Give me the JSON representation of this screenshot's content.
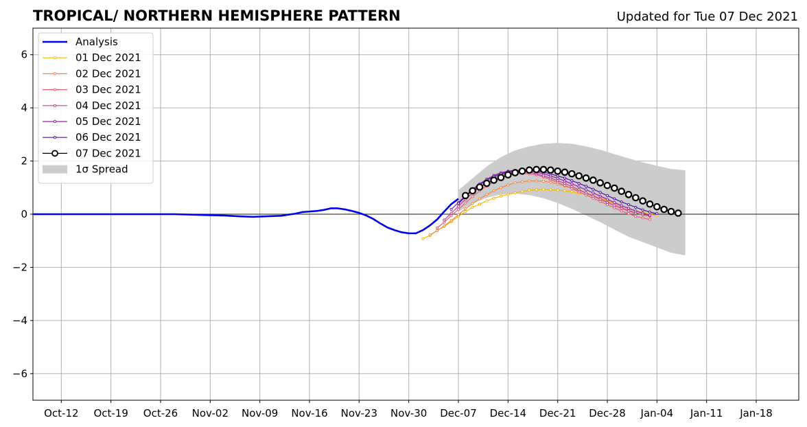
{
  "chart_data": {
    "type": "line",
    "title": "TROPICAL/ NORTHERN HEMISPHERE PATTERN",
    "subtitle": "Updated for Tue 07 Dec 2021",
    "xlabel": "",
    "ylabel": "",
    "x_range": [
      "2021-10-08",
      "2022-01-24"
    ],
    "ylim": [
      -7,
      7
    ],
    "y_ticks": [
      -6,
      -4,
      -2,
      0,
      2,
      4,
      6
    ],
    "y_tick_labels": [
      "−6",
      "−4",
      "−2",
      "0",
      "2",
      "4",
      "6"
    ],
    "x_ticks": [
      "2021-10-12",
      "2021-10-19",
      "2021-10-26",
      "2021-11-02",
      "2021-11-09",
      "2021-11-16",
      "2021-11-23",
      "2021-11-30",
      "2021-12-07",
      "2021-12-14",
      "2021-12-21",
      "2021-12-28",
      "2022-01-04",
      "2022-01-11",
      "2022-01-18"
    ],
    "x_tick_labels": [
      "Oct-12",
      "Oct-19",
      "Oct-26",
      "Nov-02",
      "Nov-09",
      "Nov-16",
      "Nov-23",
      "Nov-30",
      "Dec-07",
      "Dec-14",
      "Dec-21",
      "Dec-28",
      "Jan-04",
      "Jan-11",
      "Jan-18"
    ],
    "grid": true,
    "zero_line": true,
    "legend_position": "top-left",
    "analysis": {
      "name": "Analysis",
      "color": "#0000ee",
      "points": [
        [
          "2021-10-08",
          0.0
        ],
        [
          "2021-10-28",
          0.0
        ],
        [
          "2021-11-01",
          -0.03
        ],
        [
          "2021-11-04",
          -0.05
        ],
        [
          "2021-11-06",
          -0.08
        ],
        [
          "2021-11-08",
          -0.1
        ],
        [
          "2021-11-10",
          -0.08
        ],
        [
          "2021-11-12",
          -0.06
        ],
        [
          "2021-11-14",
          0.02
        ],
        [
          "2021-11-15",
          0.08
        ],
        [
          "2021-11-16",
          0.1
        ],
        [
          "2021-11-17",
          0.12
        ],
        [
          "2021-11-18",
          0.16
        ],
        [
          "2021-11-19",
          0.22
        ],
        [
          "2021-11-20",
          0.22
        ],
        [
          "2021-11-21",
          0.18
        ],
        [
          "2021-11-22",
          0.12
        ],
        [
          "2021-11-23",
          0.05
        ],
        [
          "2021-11-24",
          -0.05
        ],
        [
          "2021-11-25",
          -0.18
        ],
        [
          "2021-11-26",
          -0.35
        ],
        [
          "2021-11-27",
          -0.5
        ],
        [
          "2021-11-28",
          -0.6
        ],
        [
          "2021-11-29",
          -0.68
        ],
        [
          "2021-11-30",
          -0.72
        ],
        [
          "2021-12-01",
          -0.72
        ],
        [
          "2021-12-02",
          -0.6
        ],
        [
          "2021-12-03",
          -0.42
        ],
        [
          "2021-12-04",
          -0.2
        ],
        [
          "2021-12-05",
          0.1
        ],
        [
          "2021-12-06",
          0.38
        ],
        [
          "2021-12-07",
          0.58
        ]
      ]
    },
    "spread": {
      "name": "1σ Spread",
      "color": "#cccccc",
      "x": [
        "2021-12-07",
        "2021-12-09",
        "2021-12-11",
        "2021-12-13",
        "2021-12-15",
        "2021-12-17",
        "2021-12-19",
        "2021-12-21",
        "2021-12-23",
        "2021-12-25",
        "2021-12-27",
        "2021-12-29",
        "2021-12-31",
        "2022-01-02",
        "2022-01-04",
        "2022-01-06",
        "2022-01-08"
      ],
      "upper": [
        0.9,
        1.35,
        1.8,
        2.15,
        2.4,
        2.55,
        2.65,
        2.68,
        2.65,
        2.55,
        2.42,
        2.26,
        2.1,
        1.95,
        1.82,
        1.7,
        1.65
      ],
      "lower": [
        0.1,
        0.4,
        0.62,
        0.74,
        0.78,
        0.72,
        0.6,
        0.42,
        0.2,
        -0.05,
        -0.3,
        -0.58,
        -0.85,
        -1.05,
        -1.25,
        -1.45,
        -1.55
      ]
    },
    "series": [
      {
        "name": "01 Dec 2021",
        "color": "#f5b800",
        "start": "2021-12-02",
        "values": [
          -0.92,
          -0.8,
          -0.62,
          -0.46,
          -0.28,
          -0.08,
          0.1,
          0.26,
          0.38,
          0.5,
          0.6,
          0.68,
          0.74,
          0.8,
          0.86,
          0.9,
          0.92,
          0.93,
          0.92,
          0.9,
          0.88,
          0.85,
          0.8,
          0.75,
          0.68,
          0.6,
          0.52,
          0.42,
          0.32,
          0.22,
          0.12,
          0.06,
          0.0,
          -0.05
        ]
      },
      {
        "name": "02 Dec 2021",
        "color": "#f0884a",
        "start": "2021-12-03",
        "values": [
          -0.78,
          -0.62,
          -0.44,
          -0.24,
          -0.02,
          0.2,
          0.4,
          0.58,
          0.74,
          0.88,
          1.0,
          1.1,
          1.18,
          1.22,
          1.25,
          1.25,
          1.24,
          1.2,
          1.14,
          1.06,
          0.98,
          0.9,
          0.8,
          0.7,
          0.6,
          0.48,
          0.38,
          0.26,
          0.15,
          0.06,
          -0.02,
          -0.08
        ]
      },
      {
        "name": "03 Dec 2021",
        "color": "#e0607a",
        "start": "2021-12-04",
        "values": [
          -0.52,
          -0.3,
          -0.06,
          0.18,
          0.42,
          0.66,
          0.88,
          1.06,
          1.22,
          1.36,
          1.46,
          1.52,
          1.54,
          1.52,
          1.48,
          1.4,
          1.3,
          1.2,
          1.08,
          0.96,
          0.84,
          0.72,
          0.6,
          0.48,
          0.36,
          0.24,
          0.12,
          0.02,
          -0.08,
          -0.14,
          -0.2
        ]
      },
      {
        "name": "04 Dec 2021",
        "color": "#c04090",
        "start": "2021-12-05",
        "values": [
          -0.22,
          0.04,
          0.3,
          0.56,
          0.8,
          1.02,
          1.2,
          1.36,
          1.48,
          1.56,
          1.6,
          1.6,
          1.58,
          1.52,
          1.44,
          1.36,
          1.26,
          1.16,
          1.04,
          0.92,
          0.8,
          0.68,
          0.56,
          0.44,
          0.32,
          0.22,
          0.12,
          0.04,
          -0.02,
          -0.06
        ]
      },
      {
        "name": "05 Dec 2021",
        "color": "#9020a8",
        "start": "2021-12-06",
        "values": [
          0.18,
          0.44,
          0.7,
          0.94,
          1.14,
          1.32,
          1.46,
          1.56,
          1.62,
          1.65,
          1.65,
          1.62,
          1.58,
          1.52,
          1.44,
          1.35,
          1.25,
          1.14,
          1.03,
          0.92,
          0.8,
          0.68,
          0.56,
          0.44,
          0.32,
          0.22,
          0.12,
          0.04,
          -0.04
        ]
      },
      {
        "name": "06 Dec 2021",
        "color": "#50109a",
        "start": "2021-12-07",
        "values": [
          0.4,
          0.66,
          0.9,
          1.1,
          1.28,
          1.42,
          1.52,
          1.6,
          1.64,
          1.66,
          1.66,
          1.62,
          1.58,
          1.52,
          1.44,
          1.36,
          1.26,
          1.16,
          1.05,
          0.94,
          0.82,
          0.7,
          0.58,
          0.46,
          0.36,
          0.26,
          0.16,
          0.08,
          0.02
        ]
      },
      {
        "name": "07 Dec 2021",
        "color": "#000000",
        "start": "2021-12-08",
        "values": [
          0.7,
          0.88,
          1.02,
          1.16,
          1.28,
          1.38,
          1.48,
          1.56,
          1.62,
          1.66,
          1.68,
          1.68,
          1.66,
          1.62,
          1.58,
          1.52,
          1.44,
          1.36,
          1.28,
          1.18,
          1.08,
          0.98,
          0.86,
          0.74,
          0.62,
          0.5,
          0.38,
          0.28,
          0.18,
          0.1,
          0.04
        ]
      }
    ]
  }
}
